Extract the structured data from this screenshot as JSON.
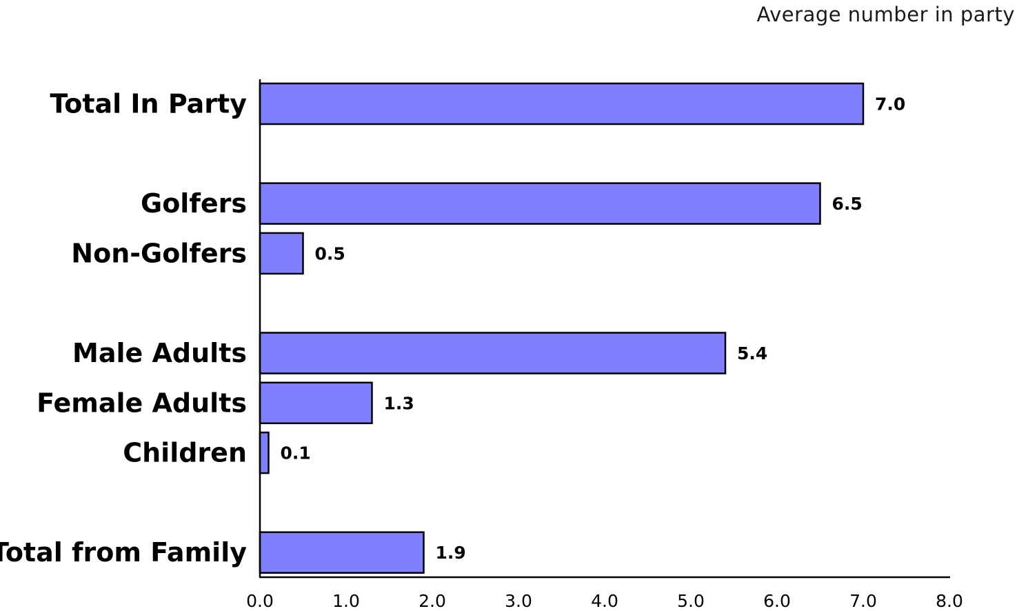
{
  "chart_data": {
    "type": "bar",
    "orientation": "horizontal",
    "title": "",
    "subtitle": "Average number in party",
    "categories": [
      "Total In Party",
      "Golfers",
      "Non-Golfers",
      "Male Adults",
      "Female Adults",
      "Children",
      "Total from Family"
    ],
    "values": [
      7.0,
      6.5,
      0.5,
      5.4,
      1.3,
      0.1,
      1.9
    ],
    "value_labels": [
      "7.0",
      "6.5",
      "0.5",
      "5.4",
      "1.3",
      "0.1",
      "1.9"
    ],
    "groups": [
      [
        "Total In Party"
      ],
      [
        "Golfers",
        "Non-Golfers"
      ],
      [
        "Male Adults",
        "Female Adults",
        "Children"
      ],
      [
        "Total from Family"
      ]
    ],
    "xlabel": "",
    "ylabel": "",
    "xlim": [
      0,
      8
    ],
    "x_ticks": [
      "0.0",
      "1.0",
      "2.0",
      "3.0",
      "4.0",
      "5.0",
      "6.0",
      "7.0",
      "8.0"
    ],
    "grid": false,
    "legend": "none",
    "bar_color": "#8080ff",
    "bar_edge_color": "#000000"
  }
}
